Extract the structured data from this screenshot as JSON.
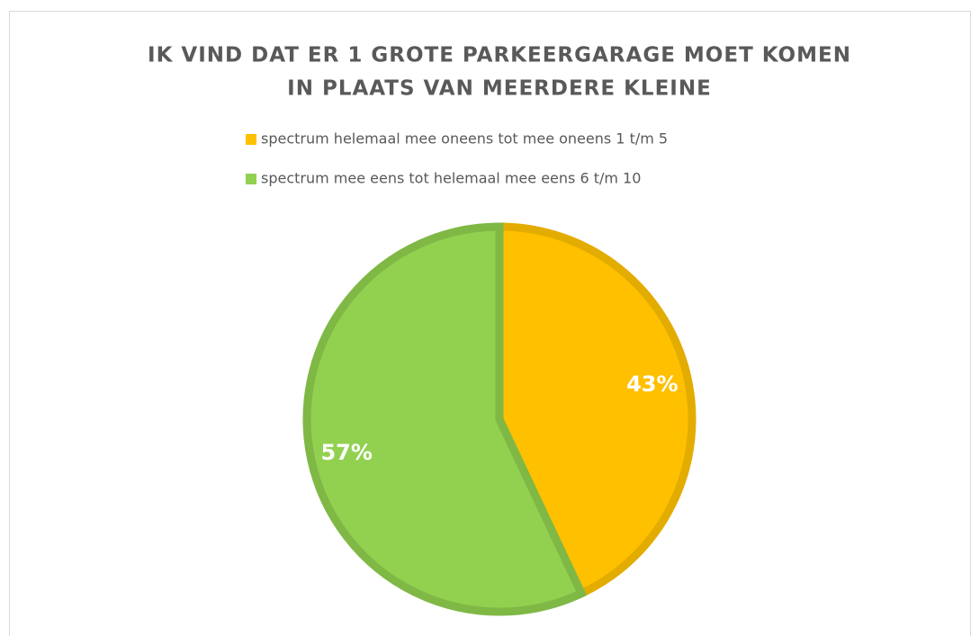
{
  "chart_data": {
    "type": "pie",
    "title": [
      "IK VIND DAT ER 1 GROTE PARKEERGARAGE MOET KOMEN",
      "IN PLAATS VAN MEERDERE KLEINE"
    ],
    "categories": [
      "spectrum helemaal mee oneens tot mee oneens 1 t/m 5",
      "spectrum mee eens tot helemaal mee eens 6 t/m 10"
    ],
    "values": [
      43,
      57
    ],
    "value_labels": [
      "43%",
      "57%"
    ],
    "colors": [
      "#ffc000",
      "#92d050"
    ],
    "edge_colors": [
      "#e3ac00",
      "#7fb845"
    ],
    "legend": "top"
  }
}
